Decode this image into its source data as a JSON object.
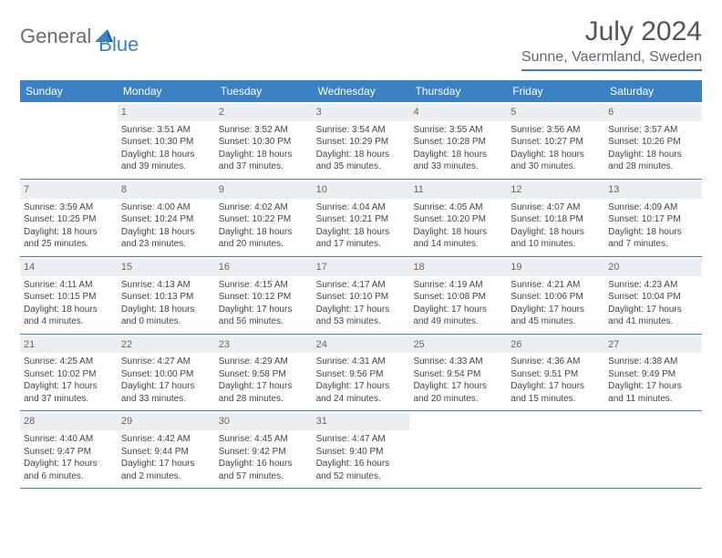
{
  "brand": {
    "part1": "General",
    "part2": "Blue"
  },
  "title": "July 2024",
  "location": "Sunne, Vaermland, Sweden",
  "colors": {
    "accent": "#3b82c4",
    "header_bg": "#3b82c4",
    "header_text": "#ffffff",
    "daynum_bg": "#eceff1",
    "text": "#444444",
    "title_text": "#555555",
    "location_text": "#666666",
    "logo_gray": "#6b6b6b"
  },
  "weekdays": [
    "Sunday",
    "Monday",
    "Tuesday",
    "Wednesday",
    "Thursday",
    "Friday",
    "Saturday"
  ],
  "weeks": [
    [
      {
        "n": "",
        "empty": true
      },
      {
        "n": "1",
        "sunrise": "Sunrise: 3:51 AM",
        "sunset": "Sunset: 10:30 PM",
        "daylight": "Daylight: 18 hours and 39 minutes."
      },
      {
        "n": "2",
        "sunrise": "Sunrise: 3:52 AM",
        "sunset": "Sunset: 10:30 PM",
        "daylight": "Daylight: 18 hours and 37 minutes."
      },
      {
        "n": "3",
        "sunrise": "Sunrise: 3:54 AM",
        "sunset": "Sunset: 10:29 PM",
        "daylight": "Daylight: 18 hours and 35 minutes."
      },
      {
        "n": "4",
        "sunrise": "Sunrise: 3:55 AM",
        "sunset": "Sunset: 10:28 PM",
        "daylight": "Daylight: 18 hours and 33 minutes."
      },
      {
        "n": "5",
        "sunrise": "Sunrise: 3:56 AM",
        "sunset": "Sunset: 10:27 PM",
        "daylight": "Daylight: 18 hours and 30 minutes."
      },
      {
        "n": "6",
        "sunrise": "Sunrise: 3:57 AM",
        "sunset": "Sunset: 10:26 PM",
        "daylight": "Daylight: 18 hours and 28 minutes."
      }
    ],
    [
      {
        "n": "7",
        "sunrise": "Sunrise: 3:59 AM",
        "sunset": "Sunset: 10:25 PM",
        "daylight": "Daylight: 18 hours and 25 minutes."
      },
      {
        "n": "8",
        "sunrise": "Sunrise: 4:00 AM",
        "sunset": "Sunset: 10:24 PM",
        "daylight": "Daylight: 18 hours and 23 minutes."
      },
      {
        "n": "9",
        "sunrise": "Sunrise: 4:02 AM",
        "sunset": "Sunset: 10:22 PM",
        "daylight": "Daylight: 18 hours and 20 minutes."
      },
      {
        "n": "10",
        "sunrise": "Sunrise: 4:04 AM",
        "sunset": "Sunset: 10:21 PM",
        "daylight": "Daylight: 18 hours and 17 minutes."
      },
      {
        "n": "11",
        "sunrise": "Sunrise: 4:05 AM",
        "sunset": "Sunset: 10:20 PM",
        "daylight": "Daylight: 18 hours and 14 minutes."
      },
      {
        "n": "12",
        "sunrise": "Sunrise: 4:07 AM",
        "sunset": "Sunset: 10:18 PM",
        "daylight": "Daylight: 18 hours and 10 minutes."
      },
      {
        "n": "13",
        "sunrise": "Sunrise: 4:09 AM",
        "sunset": "Sunset: 10:17 PM",
        "daylight": "Daylight: 18 hours and 7 minutes."
      }
    ],
    [
      {
        "n": "14",
        "sunrise": "Sunrise: 4:11 AM",
        "sunset": "Sunset: 10:15 PM",
        "daylight": "Daylight: 18 hours and 4 minutes."
      },
      {
        "n": "15",
        "sunrise": "Sunrise: 4:13 AM",
        "sunset": "Sunset: 10:13 PM",
        "daylight": "Daylight: 18 hours and 0 minutes."
      },
      {
        "n": "16",
        "sunrise": "Sunrise: 4:15 AM",
        "sunset": "Sunset: 10:12 PM",
        "daylight": "Daylight: 17 hours and 56 minutes."
      },
      {
        "n": "17",
        "sunrise": "Sunrise: 4:17 AM",
        "sunset": "Sunset: 10:10 PM",
        "daylight": "Daylight: 17 hours and 53 minutes."
      },
      {
        "n": "18",
        "sunrise": "Sunrise: 4:19 AM",
        "sunset": "Sunset: 10:08 PM",
        "daylight": "Daylight: 17 hours and 49 minutes."
      },
      {
        "n": "19",
        "sunrise": "Sunrise: 4:21 AM",
        "sunset": "Sunset: 10:06 PM",
        "daylight": "Daylight: 17 hours and 45 minutes."
      },
      {
        "n": "20",
        "sunrise": "Sunrise: 4:23 AM",
        "sunset": "Sunset: 10:04 PM",
        "daylight": "Daylight: 17 hours and 41 minutes."
      }
    ],
    [
      {
        "n": "21",
        "sunrise": "Sunrise: 4:25 AM",
        "sunset": "Sunset: 10:02 PM",
        "daylight": "Daylight: 17 hours and 37 minutes."
      },
      {
        "n": "22",
        "sunrise": "Sunrise: 4:27 AM",
        "sunset": "Sunset: 10:00 PM",
        "daylight": "Daylight: 17 hours and 33 minutes."
      },
      {
        "n": "23",
        "sunrise": "Sunrise: 4:29 AM",
        "sunset": "Sunset: 9:58 PM",
        "daylight": "Daylight: 17 hours and 28 minutes."
      },
      {
        "n": "24",
        "sunrise": "Sunrise: 4:31 AM",
        "sunset": "Sunset: 9:56 PM",
        "daylight": "Daylight: 17 hours and 24 minutes."
      },
      {
        "n": "25",
        "sunrise": "Sunrise: 4:33 AM",
        "sunset": "Sunset: 9:54 PM",
        "daylight": "Daylight: 17 hours and 20 minutes."
      },
      {
        "n": "26",
        "sunrise": "Sunrise: 4:36 AM",
        "sunset": "Sunset: 9:51 PM",
        "daylight": "Daylight: 17 hours and 15 minutes."
      },
      {
        "n": "27",
        "sunrise": "Sunrise: 4:38 AM",
        "sunset": "Sunset: 9:49 PM",
        "daylight": "Daylight: 17 hours and 11 minutes."
      }
    ],
    [
      {
        "n": "28",
        "sunrise": "Sunrise: 4:40 AM",
        "sunset": "Sunset: 9:47 PM",
        "daylight": "Daylight: 17 hours and 6 minutes."
      },
      {
        "n": "29",
        "sunrise": "Sunrise: 4:42 AM",
        "sunset": "Sunset: 9:44 PM",
        "daylight": "Daylight: 17 hours and 2 minutes."
      },
      {
        "n": "30",
        "sunrise": "Sunrise: 4:45 AM",
        "sunset": "Sunset: 9:42 PM",
        "daylight": "Daylight: 16 hours and 57 minutes."
      },
      {
        "n": "31",
        "sunrise": "Sunrise: 4:47 AM",
        "sunset": "Sunset: 9:40 PM",
        "daylight": "Daylight: 16 hours and 52 minutes."
      },
      {
        "n": "",
        "empty": true
      },
      {
        "n": "",
        "empty": true
      },
      {
        "n": "",
        "empty": true
      }
    ]
  ]
}
